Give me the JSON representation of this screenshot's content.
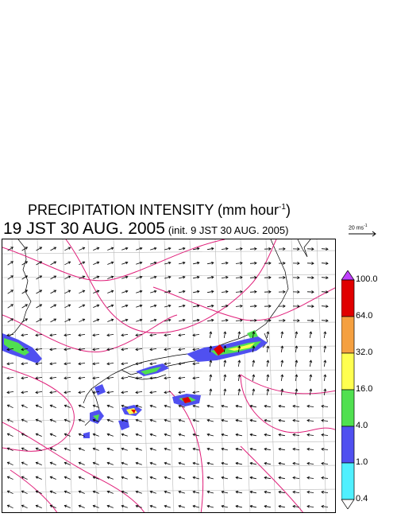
{
  "title": {
    "main": "PRECIPITATION INTENSITY (mm hour",
    "exp": "-1",
    "close": ")"
  },
  "valid_time": "19 JST 30 AUG. 2005",
  "init_time": "(init. 9 JST 30 AUG. 2005)",
  "vector_ref": {
    "value": "20 ms",
    "exp": "-1"
  },
  "legend": {
    "labels": [
      "100.0",
      "64.0",
      "32.0",
      "16.0",
      "4.0",
      "1.0",
      "0.4"
    ],
    "colors": [
      "#e00000",
      "#f5a040",
      "#ffff50",
      "#50e050",
      "#5050f0",
      "#50f0ff"
    ],
    "over_color": "#c040ff",
    "under_color": "#ffffff"
  },
  "colors": {
    "contour": "#e0207a",
    "grid": "#b8b8b8",
    "coast": "#000000",
    "frame": "#000000"
  }
}
